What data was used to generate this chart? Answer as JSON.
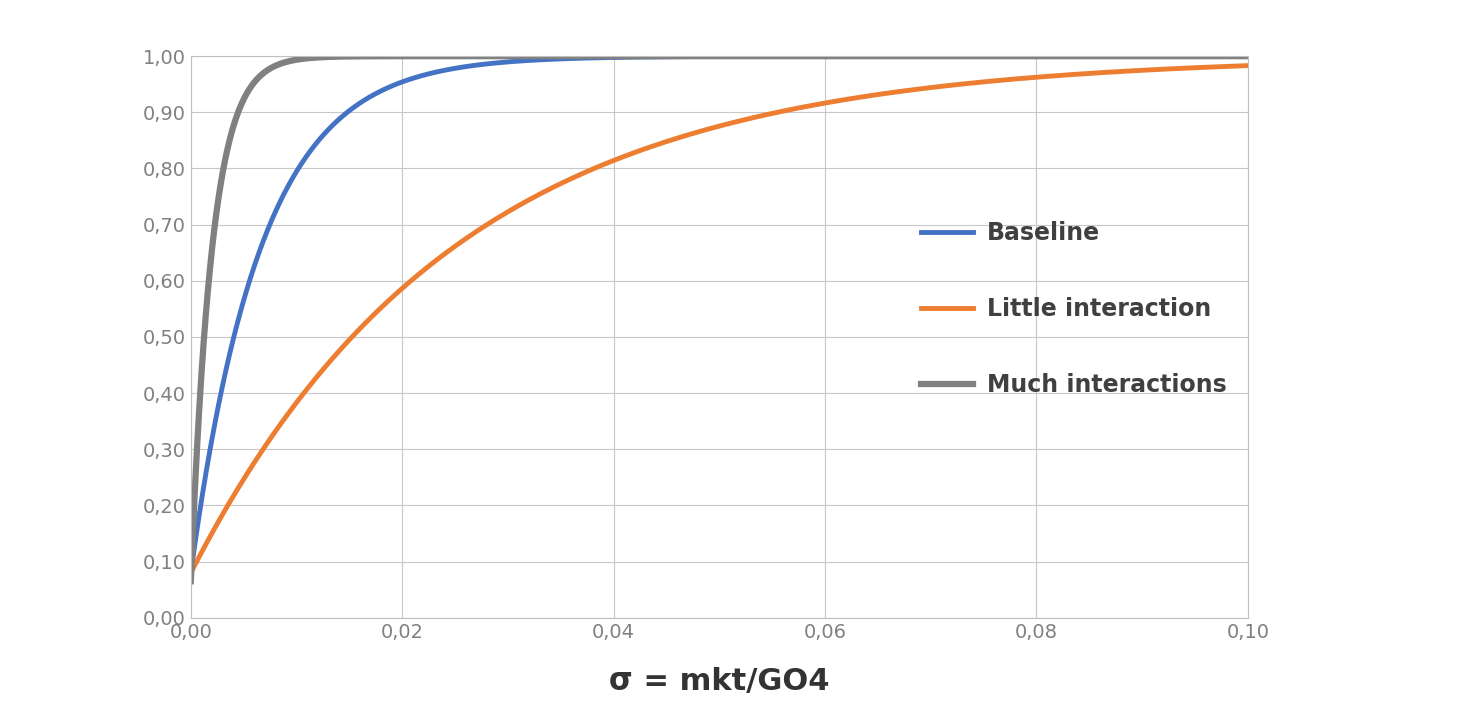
{
  "title": "",
  "xlabel": "σ = mkt/GO4",
  "xlabel_fontsize": 22,
  "xlabel_fontweight": "bold",
  "xlim": [
    0.0,
    0.1
  ],
  "ylim": [
    0.0,
    1.0
  ],
  "xticks": [
    0.0,
    0.02,
    0.04,
    0.06,
    0.08,
    0.1
  ],
  "yticks": [
    0.0,
    0.1,
    0.2,
    0.3,
    0.4,
    0.5,
    0.6,
    0.7,
    0.8,
    0.9,
    1.0
  ],
  "curves": [
    {
      "label": "Baseline",
      "color": "#4472C4",
      "linewidth": 3.5,
      "k": 150,
      "y0": 0.08
    },
    {
      "label": "Little interaction",
      "color": "#ED7D31",
      "linewidth": 3.5,
      "k": 40,
      "y0": 0.08
    },
    {
      "label": "Much interactions",
      "color": "#808080",
      "linewidth": 4.5,
      "k": 500,
      "y0": 0.065
    }
  ],
  "legend_fontsize": 17,
  "legend_fontweight": "bold",
  "background_color": "#FFFFFF",
  "grid_color": "#C8C8C8",
  "tick_label_color": "#808080",
  "tick_fontsize": 14,
  "spine_color": "#C0C0C0"
}
